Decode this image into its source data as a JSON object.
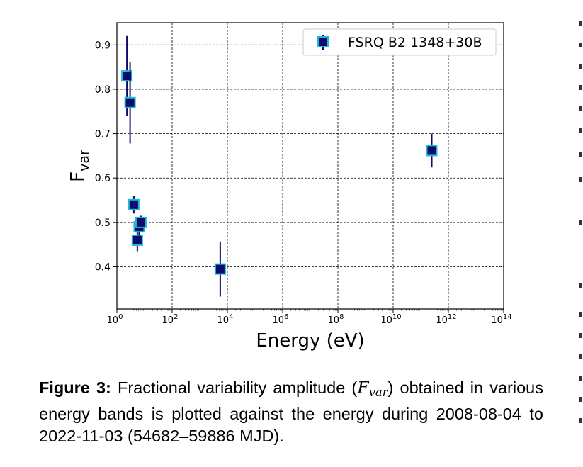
{
  "chart_data": {
    "type": "scatter",
    "x_scale": "log",
    "xlabel": "Energy (eV)",
    "ylabel_main": "F",
    "ylabel_sub": "var",
    "xlim": [
      1,
      100000000000000
    ],
    "ylim": [
      0.305,
      0.95
    ],
    "x_ticks": [
      {
        "value": 1,
        "base": "10",
        "exp": "0"
      },
      {
        "value": 100,
        "base": "10",
        "exp": "2"
      },
      {
        "value": 10000,
        "base": "10",
        "exp": "4"
      },
      {
        "value": 1000000,
        "base": "10",
        "exp": "6"
      },
      {
        "value": 100000000,
        "base": "10",
        "exp": "8"
      },
      {
        "value": 10000000000,
        "base": "10",
        "exp": "10"
      },
      {
        "value": 1000000000000,
        "base": "10",
        "exp": "12"
      },
      {
        "value": 100000000000000,
        "base": "10",
        "exp": "14"
      }
    ],
    "y_ticks": [
      {
        "value": 0.4,
        "label": "0.4"
      },
      {
        "value": 0.5,
        "label": "0.5"
      },
      {
        "value": 0.6,
        "label": "0.6"
      },
      {
        "value": 0.7,
        "label": "0.7"
      },
      {
        "value": 0.8,
        "label": "0.8"
      },
      {
        "value": 0.9,
        "label": "0.9"
      }
    ],
    "grid": true,
    "legend_position": "top-right",
    "series": [
      {
        "name": "FSRQ B2 1348+30B",
        "marker_fill": "#0b0b6e",
        "marker_edge": "#22b8d4",
        "errorbar_color": "#0b0b6e",
        "points": [
          {
            "x": 2.3,
            "y": 0.83,
            "yerr": 0.09
          },
          {
            "x": 3.0,
            "y": 0.77,
            "yerr": 0.092
          },
          {
            "x": 4.1,
            "y": 0.54,
            "yerr": 0.02
          },
          {
            "x": 5.5,
            "y": 0.46,
            "yerr": 0.025
          },
          {
            "x": 6.4,
            "y": 0.49,
            "yerr": 0.02
          },
          {
            "x": 7.4,
            "y": 0.5,
            "yerr": 0.015
          },
          {
            "x": 5500,
            "y": 0.395,
            "yerr": 0.062
          },
          {
            "x": 250000000000,
            "y": 0.662,
            "yerr": 0.038
          }
        ]
      }
    ]
  },
  "caption": {
    "label": "Figure 3:",
    "text_before": " Fractional variability amplitude (",
    "math_main": "F",
    "math_sub": "var",
    "text_after": ") obtained in various energy bands is plotted against the energy during 2008-08-04 to 2022-11-03 (54682–59886 MJD)."
  }
}
